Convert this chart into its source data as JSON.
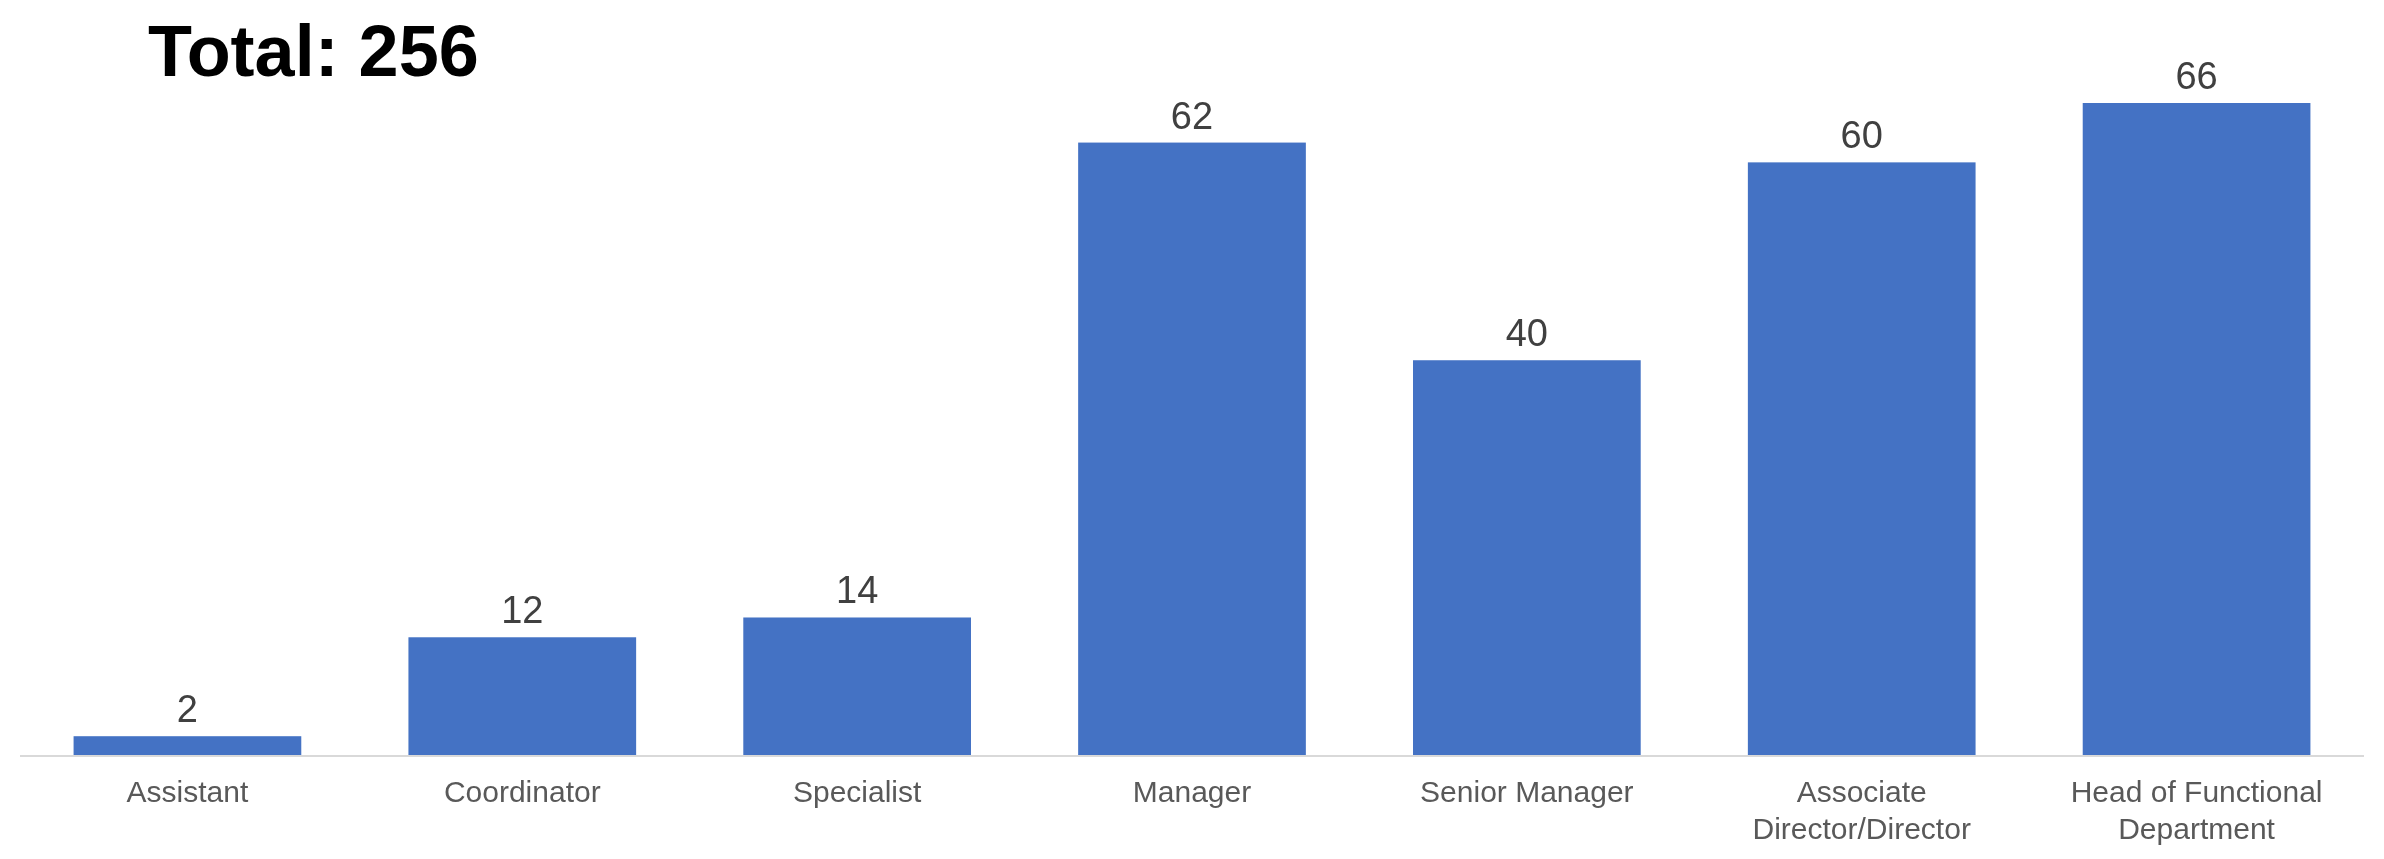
{
  "chart_data": {
    "type": "bar",
    "title": "Total: 256",
    "categories": [
      "Assistant",
      "Coordinator",
      "Specialist",
      "Manager",
      "Senior Manager",
      "Associate Director/Director",
      "Head of Functional Department"
    ],
    "values": [
      2,
      12,
      14,
      62,
      40,
      60,
      66
    ],
    "color": "#4472c4",
    "data_labels": true
  }
}
